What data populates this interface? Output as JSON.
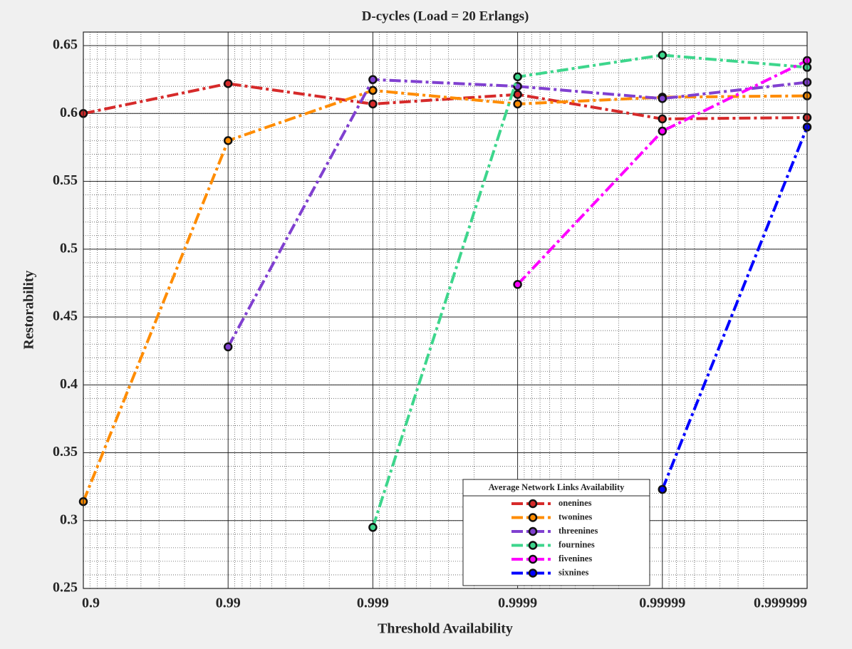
{
  "chart_data": {
    "type": "line",
    "title": "D-cycles (Load  = 20 Erlangs)",
    "x_label": "Threshold Availability",
    "y_label": "Restorability",
    "categories": [
      "0.9",
      "0.99",
      "0.999",
      "0.9999",
      "0.99999",
      "0.999999"
    ],
    "ylim": [
      0.25,
      0.66
    ],
    "yticks": [
      0.25,
      0.3,
      0.35,
      0.4,
      0.45,
      0.5,
      0.55,
      0.6,
      0.65
    ],
    "grid": true,
    "legend_title": "Average Network Links Availability",
    "legend_position": "lower right",
    "series": [
      {
        "name": "onenines",
        "color": "#d62a2a",
        "values": [
          0.6,
          0.622,
          0.607,
          0.614,
          0.596,
          0.597
        ]
      },
      {
        "name": "twonines",
        "color": "#ff8c00",
        "values": [
          0.314,
          0.58,
          0.617,
          0.607,
          0.612,
          0.613
        ]
      },
      {
        "name": "threenines",
        "color": "#8040d0",
        "values": [
          null,
          0.428,
          0.625,
          0.62,
          0.611,
          0.623
        ]
      },
      {
        "name": "fournines",
        "color": "#3dd68c",
        "values": [
          null,
          null,
          0.295,
          0.627,
          0.643,
          0.634
        ]
      },
      {
        "name": "fivenines",
        "color": "#ff00ff",
        "values": [
          null,
          null,
          null,
          0.474,
          0.587,
          0.639
        ]
      },
      {
        "name": "sixnines",
        "color": "#0000ff",
        "values": [
          null,
          null,
          null,
          null,
          0.323,
          0.59
        ]
      }
    ]
  }
}
